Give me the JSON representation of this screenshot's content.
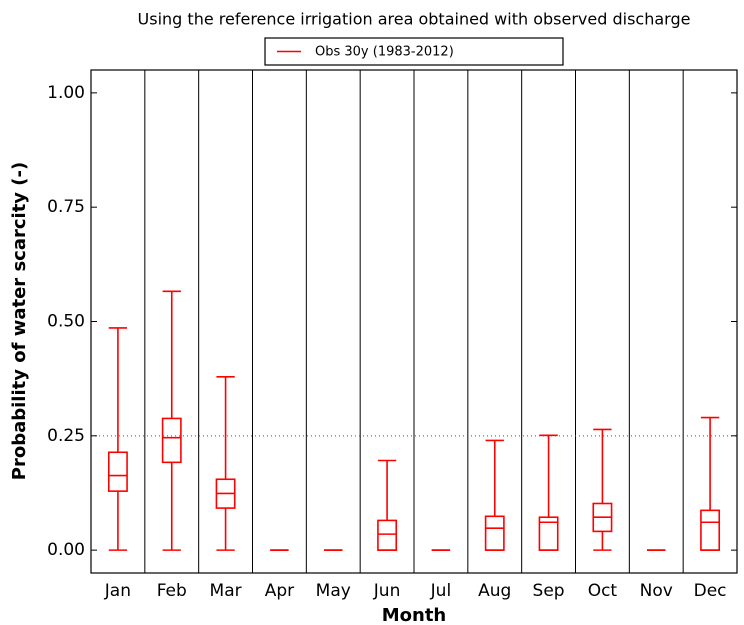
{
  "chart_data": {
    "type": "box",
    "title": "Using the reference irrigation area obtained with observed discharge",
    "xlabel": "Month",
    "ylabel": "Probability of water scarcity (-)",
    "categories": [
      "Jan",
      "Feb",
      "Mar",
      "Apr",
      "May",
      "Jun",
      "Jul",
      "Aug",
      "Sep",
      "Oct",
      "Nov",
      "Dec"
    ],
    "series": [
      {
        "name": "Obs 30y (1983-2012)",
        "color": "#ff0000",
        "min": [
          0,
          0,
          0,
          0,
          0,
          0,
          0,
          0,
          0,
          0,
          0,
          0
        ],
        "q1": [
          0.129,
          0.192,
          0.092,
          0,
          0,
          0,
          0,
          0,
          0,
          0.041,
          0,
          0
        ],
        "median": [
          0.163,
          0.246,
          0.124,
          0,
          0,
          0.035,
          0,
          0.048,
          0.061,
          0.072,
          0,
          0.061
        ],
        "q3": [
          0.214,
          0.288,
          0.155,
          0,
          0,
          0.065,
          0,
          0.074,
          0.072,
          0.102,
          0,
          0.087
        ],
        "max": [
          0.486,
          0.566,
          0.379,
          0,
          0,
          0.196,
          0,
          0.24,
          0.251,
          0.264,
          0,
          0.29
        ]
      }
    ],
    "ylim": [
      -0.05,
      1.05
    ],
    "yticks": [
      {
        "value": 0,
        "label": "0.00"
      },
      {
        "value": 0.25,
        "label": "0.25"
      },
      {
        "value": 0.5,
        "label": "0.50"
      },
      {
        "value": 0.75,
        "label": "0.75"
      },
      {
        "value": 1,
        "label": "1.00"
      }
    ],
    "hline": 0.25,
    "category_separators": true,
    "legend": "top"
  }
}
